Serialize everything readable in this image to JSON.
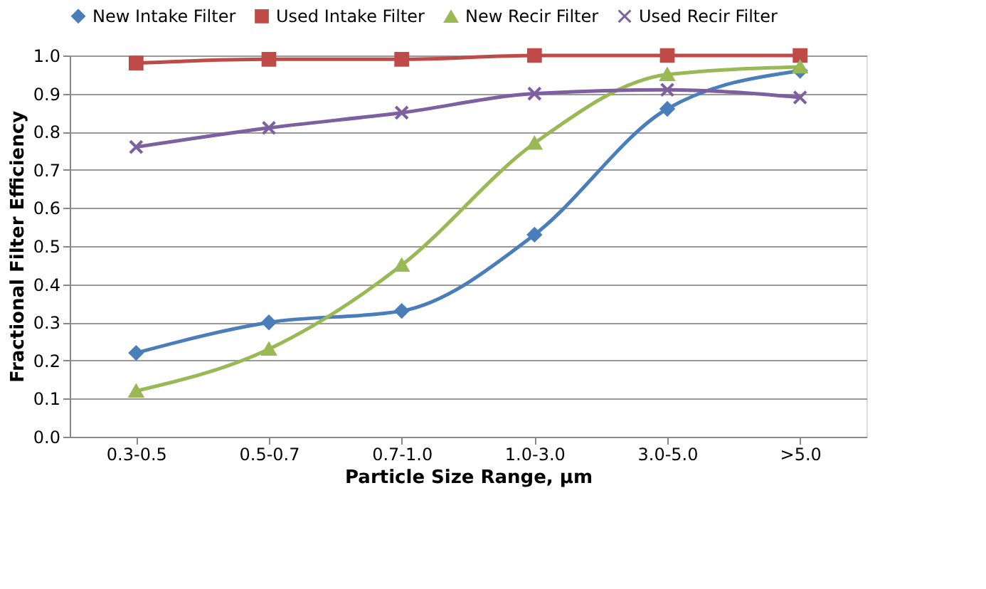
{
  "chart_data": {
    "type": "line",
    "xlabel": "Particle Size Range, µm",
    "ylabel": "Fractional Filter Efficiency",
    "categories": [
      "0.3-0.5",
      "0.5-0.7",
      "0.7-1.0",
      "1.0-3.0",
      "3.0-5.0",
      ">5.0"
    ],
    "series": [
      {
        "name": "New Intake Filter",
        "color": "#4a7ebb",
        "marker": "diamond",
        "values": [
          0.22,
          0.3,
          0.33,
          0.53,
          0.86,
          0.96
        ]
      },
      {
        "name": "Used Intake Filter",
        "color": "#be4b48",
        "marker": "square",
        "values": [
          0.98,
          0.99,
          0.99,
          1.0,
          1.0,
          1.0
        ]
      },
      {
        "name": "New Recir Filter",
        "color": "#98b954",
        "marker": "triangle",
        "values": [
          0.12,
          0.23,
          0.45,
          0.77,
          0.95,
          0.97
        ]
      },
      {
        "name": "Used Recir Filter",
        "color": "#7d60a0",
        "marker": "cross",
        "values": [
          0.76,
          0.81,
          0.85,
          0.9,
          0.91,
          0.89
        ]
      }
    ],
    "ylim": [
      0,
      1.0
    ],
    "yticks": [
      {
        "value": 0,
        "label": "0.0"
      },
      0.1,
      0.2,
      0.3,
      0.4,
      0.5,
      0.6,
      0.7,
      0.8,
      0.9,
      {
        "value": 1.0,
        "label": "1.0"
      }
    ],
    "grid": "y",
    "legend": "top",
    "line_style": "solid"
  }
}
